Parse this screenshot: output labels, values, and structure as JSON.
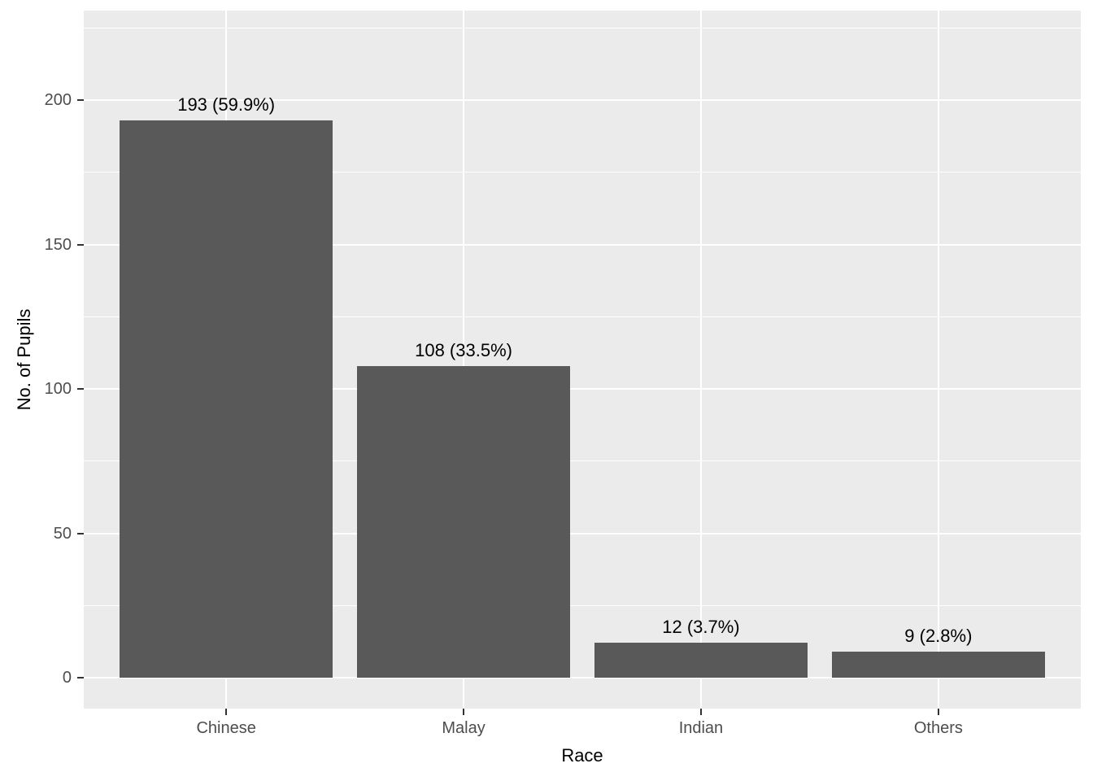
{
  "chart_data": {
    "type": "bar",
    "title": "",
    "categories": [
      "Chinese",
      "Malay",
      "Indian",
      "Others"
    ],
    "values": [
      193,
      108,
      12,
      9
    ],
    "percentages": [
      59.9,
      33.5,
      3.7,
      2.8
    ],
    "bar_labels": [
      "193 (59.9%)",
      "108 (33.5%)",
      "12 (3.7%)",
      "9 (2.8%)"
    ],
    "xlabel": "Race",
    "ylabel": "No. of Pupils",
    "ylim": [
      0,
      231
    ],
    "yticks": [
      0,
      50,
      100,
      150,
      200
    ],
    "yticks_minor": [
      25,
      75,
      125,
      175,
      225
    ],
    "grid": true,
    "legend": "none",
    "style": "ggplot2-theme-grey",
    "bar_width_fraction": 0.9,
    "colors": {
      "bar_fill": "#595959",
      "panel_background": "#EBEBEB",
      "gridline": "#FFFFFF",
      "axis_text": "#4D4D4D",
      "axis_title": "#000000",
      "bar_label_text": "#000000",
      "tick_mark": "#333333",
      "page_background": "#FFFFFF"
    }
  }
}
